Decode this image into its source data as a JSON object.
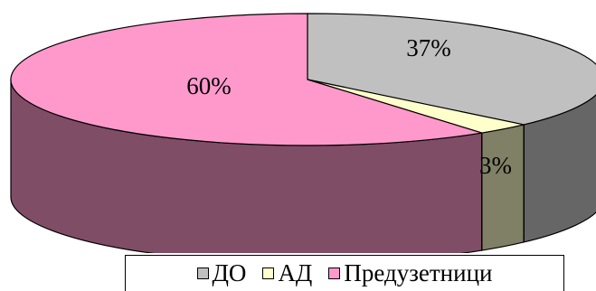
{
  "chart_data": {
    "type": "pie",
    "title": "",
    "slices": [
      {
        "label": "ДО",
        "value": 37,
        "display": "37%",
        "color": "#c0c0c0",
        "side_color": "#666666"
      },
      {
        "label": "АД",
        "value": 3,
        "display": "3%",
        "color": "#ffffcc",
        "side_color": "#808066"
      },
      {
        "label": "Предузетници",
        "value": 60,
        "display": "60%",
        "color": "#ff99cc",
        "side_color": "#804d66"
      }
    ],
    "style": "3d",
    "legend_position": "bottom"
  }
}
